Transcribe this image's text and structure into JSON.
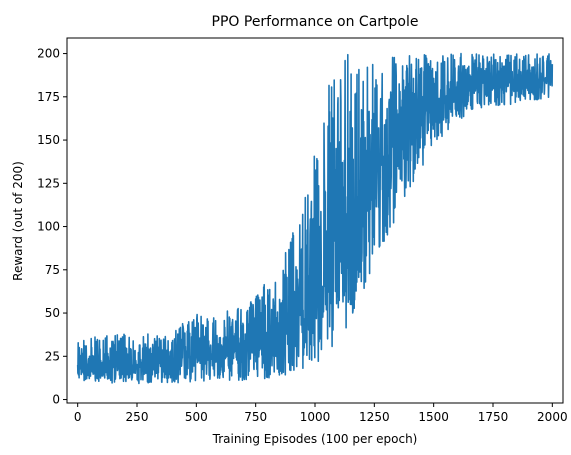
{
  "chart_data": {
    "type": "line",
    "title": "PPO Performance on Cartpole",
    "xlabel": "Training Episodes (100 per epoch)",
    "ylabel": "Reward (out of 200)",
    "xlim": [
      -45,
      2045
    ],
    "ylim": [
      -2,
      209
    ],
    "xticks": [
      0,
      250,
      500,
      750,
      1000,
      1250,
      1500,
      1750,
      2000
    ],
    "yticks": [
      0,
      25,
      50,
      75,
      100,
      125,
      150,
      175,
      200
    ],
    "grid": false,
    "series": [
      {
        "color": "#1f77b4",
        "x": [
          0,
          50,
          100,
          150,
          200,
          250,
          300,
          350,
          400,
          450,
          500,
          550,
          600,
          650,
          700,
          750,
          800,
          850,
          900,
          950,
          1000,
          1050,
          1100,
          1150,
          1200,
          1250,
          1300,
          1350,
          1400,
          1450,
          1500,
          1550,
          1600,
          1650,
          1700,
          1750,
          1800,
          1850,
          1900,
          1950,
          2000
        ],
        "y": [
          22,
          20,
          21,
          20,
          19,
          20,
          21,
          21,
          22,
          23,
          26,
          26,
          27,
          28,
          30,
          32,
          35,
          40,
          45,
          50,
          58,
          70,
          85,
          100,
          115,
          128,
          140,
          152,
          162,
          168,
          172,
          176,
          178,
          180,
          182,
          183,
          183,
          182,
          184,
          184,
          185
        ],
        "band_low": [
          10,
          9,
          9,
          9,
          9,
          9,
          9,
          9,
          9,
          10,
          10,
          10,
          11,
          11,
          11,
          12,
          12,
          13,
          15,
          17,
          20,
          27,
          35,
          45,
          60,
          75,
          90,
          105,
          120,
          130,
          145,
          155,
          160,
          165,
          168,
          170,
          170,
          170,
          172,
          172,
          175
        ],
        "band_high": [
          35,
          35,
          40,
          38,
          38,
          38,
          38,
          40,
          40,
          45,
          50,
          48,
          50,
          52,
          55,
          60,
          70,
          80,
          95,
          110,
          150,
          185,
          200,
          200,
          200,
          200,
          200,
          200,
          200,
          200,
          200,
          200,
          200,
          200,
          200,
          200,
          200,
          200,
          200,
          200,
          200
        ]
      }
    ]
  }
}
